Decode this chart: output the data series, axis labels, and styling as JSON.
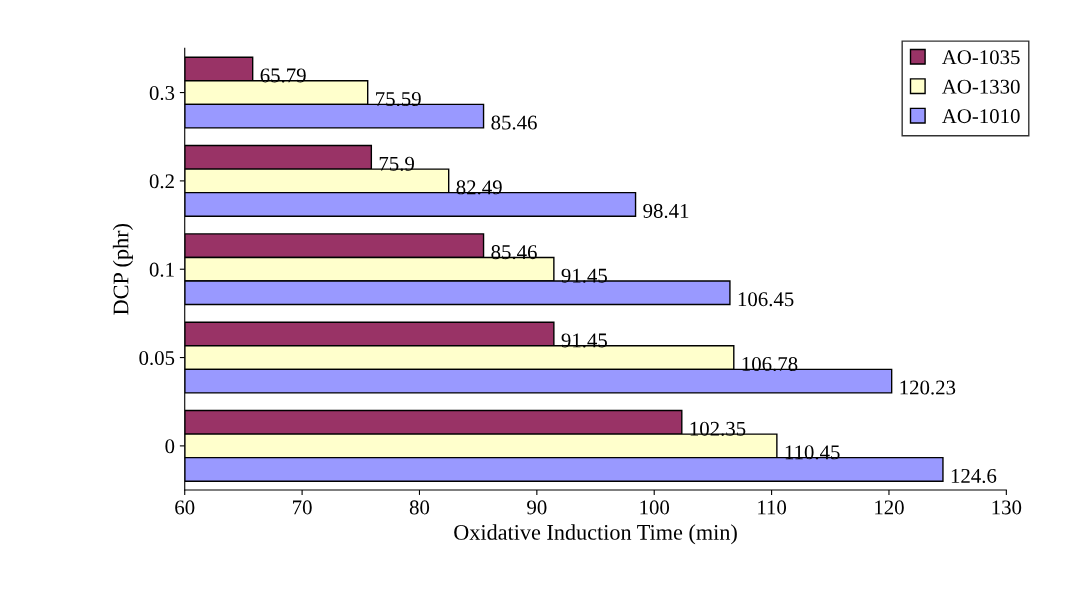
{
  "chart_data": {
    "type": "bar",
    "orientation": "horizontal",
    "xlabel": "Oxidative Induction Time (min)",
    "ylabel": "DCP (phr)",
    "categories": [
      "0.3",
      "0.2",
      "0.1",
      "0.05",
      "0"
    ],
    "series": [
      {
        "name": "AO-1035",
        "color": "#993366",
        "values": [
          65.79,
          75.9,
          85.46,
          91.45,
          102.35
        ]
      },
      {
        "name": "AO-1330",
        "color": "#ffffcc",
        "values": [
          75.59,
          82.49,
          91.45,
          106.78,
          110.45
        ]
      },
      {
        "name": "AO-1010",
        "color": "#9999ff",
        "values": [
          85.46,
          98.41,
          106.45,
          120.23,
          124.6
        ]
      }
    ],
    "xlim": [
      60,
      130
    ],
    "xticks": [
      60,
      70,
      80,
      90,
      100,
      110,
      120,
      130
    ],
    "data_labels": true,
    "legend": "top right",
    "grid": false
  }
}
